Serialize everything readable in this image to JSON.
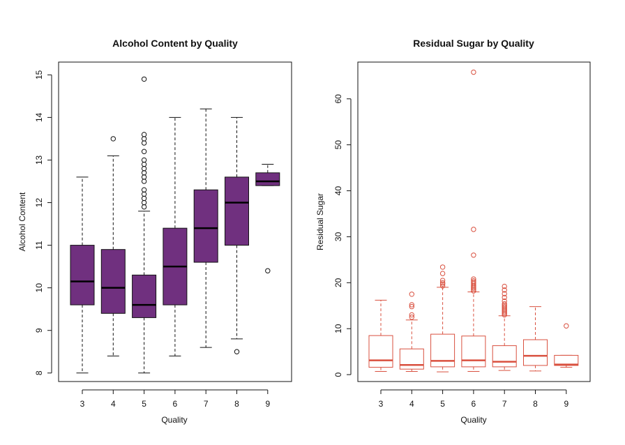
{
  "chart_data": [
    {
      "type": "boxplot",
      "title": "Alcohol Content by Quality",
      "xlabel": "Quality",
      "ylabel": "Alcohol Content",
      "ylim": [
        7.8,
        15.3
      ],
      "yticks": [
        8,
        9,
        10,
        11,
        12,
        13,
        14,
        15
      ],
      "fill": "#70307f",
      "median_color": "#000000",
      "categories": [
        "3",
        "4",
        "5",
        "6",
        "7",
        "8",
        "9"
      ],
      "boxes": [
        {
          "whislo": 8.0,
          "q1": 9.6,
          "med": 10.15,
          "q3": 11.0,
          "whishi": 12.6,
          "outliers": []
        },
        {
          "whislo": 8.4,
          "q1": 9.4,
          "med": 10.0,
          "q3": 10.9,
          "whishi": 13.1,
          "outliers": [
            13.5
          ]
        },
        {
          "whislo": 8.0,
          "q1": 9.3,
          "med": 9.6,
          "q3": 10.3,
          "whishi": 11.8,
          "outliers": [
            11.9,
            12.0,
            12.1,
            12.2,
            12.3,
            12.5,
            12.6,
            12.7,
            12.8,
            12.9,
            13.0,
            13.2,
            13.4,
            13.5,
            13.6,
            14.9
          ]
        },
        {
          "whislo": 8.4,
          "q1": 9.6,
          "med": 10.5,
          "q3": 11.4,
          "whishi": 14.0,
          "outliers": []
        },
        {
          "whislo": 8.6,
          "q1": 10.6,
          "med": 11.4,
          "q3": 12.3,
          "whishi": 14.2,
          "outliers": []
        },
        {
          "whislo": 8.8,
          "q1": 11.0,
          "med": 12.0,
          "q3": 12.6,
          "whishi": 14.0,
          "outliers": [
            8.5
          ]
        },
        {
          "whislo": 12.4,
          "q1": 12.4,
          "med": 12.5,
          "q3": 12.7,
          "whishi": 12.9,
          "outliers": [
            10.4
          ]
        }
      ]
    },
    {
      "type": "boxplot",
      "title": "Residual Sugar by Quality",
      "xlabel": "Quality",
      "ylabel": "Residual Sugar",
      "ylim": [
        -1.5,
        68
      ],
      "yticks": [
        0,
        10,
        20,
        30,
        40,
        50,
        60
      ],
      "fill": "#ffffff",
      "border": "#d9503f",
      "median_color": "#d9503f",
      "categories": [
        "3",
        "4",
        "5",
        "6",
        "7",
        "8",
        "9"
      ],
      "boxes": [
        {
          "whislo": 0.7,
          "q1": 1.6,
          "med": 3.1,
          "q3": 8.5,
          "whishi": 16.2,
          "outliers": []
        },
        {
          "whislo": 0.7,
          "q1": 1.2,
          "med": 2.1,
          "q3": 5.6,
          "whishi": 11.9,
          "outliers": [
            12.5,
            13.0,
            14.8,
            15.2,
            17.5
          ]
        },
        {
          "whislo": 0.6,
          "q1": 1.7,
          "med": 3.0,
          "q3": 8.8,
          "whishi": 19.0,
          "outliers": [
            19.3,
            19.7,
            20.0,
            20.5,
            22.0,
            23.4
          ]
        },
        {
          "whislo": 0.7,
          "q1": 1.7,
          "med": 3.1,
          "q3": 8.4,
          "whishi": 18.0,
          "outliers": [
            18.2,
            18.5,
            18.8,
            19.1,
            19.4,
            19.8,
            20.1,
            20.4,
            20.8,
            26.0,
            31.6,
            65.8
          ]
        },
        {
          "whislo": 0.9,
          "q1": 1.7,
          "med": 2.8,
          "q3": 6.3,
          "whishi": 12.8,
          "outliers": [
            13.0,
            13.3,
            13.6,
            13.9,
            14.2,
            14.5,
            14.8,
            15.1,
            15.4,
            16.0,
            16.8,
            17.6,
            18.4,
            19.2
          ]
        },
        {
          "whislo": 0.8,
          "q1": 2.0,
          "med": 4.1,
          "q3": 7.6,
          "whishi": 14.8,
          "outliers": []
        },
        {
          "whislo": 1.6,
          "q1": 2.0,
          "med": 2.2,
          "q3": 4.2,
          "whishi": 4.2,
          "outliers": [
            10.6
          ]
        }
      ]
    }
  ]
}
